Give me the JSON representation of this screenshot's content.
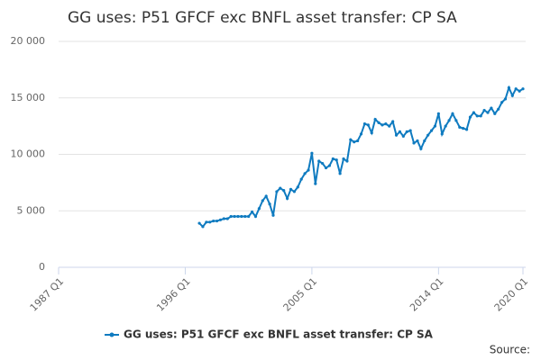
{
  "chart_data": {
    "type": "line",
    "title": "GG uses: P51 GFCF exc BNFL asset transfer: CP SA",
    "source": "Source:",
    "x": [
      "1997 Q1",
      "1997 Q2",
      "1997 Q3",
      "1997 Q4",
      "1998 Q1",
      "1998 Q2",
      "1998 Q3",
      "1998 Q4",
      "1999 Q1",
      "1999 Q2",
      "1999 Q3",
      "1999 Q4",
      "2000 Q1",
      "2000 Q2",
      "2000 Q3",
      "2000 Q4",
      "2001 Q1",
      "2001 Q2",
      "2001 Q3",
      "2001 Q4",
      "2002 Q1",
      "2002 Q2",
      "2002 Q3",
      "2002 Q4",
      "2003 Q1",
      "2003 Q2",
      "2003 Q3",
      "2003 Q4",
      "2004 Q1",
      "2004 Q2",
      "2004 Q3",
      "2004 Q4",
      "2005 Q1",
      "2005 Q2",
      "2005 Q3",
      "2005 Q4",
      "2006 Q1",
      "2006 Q2",
      "2006 Q3",
      "2006 Q4",
      "2007 Q1",
      "2007 Q2",
      "2007 Q3",
      "2007 Q4",
      "2008 Q1",
      "2008 Q2",
      "2008 Q3",
      "2008 Q4",
      "2009 Q1",
      "2009 Q2",
      "2009 Q3",
      "2009 Q4",
      "2010 Q1",
      "2010 Q2",
      "2010 Q3",
      "2010 Q4",
      "2011 Q1",
      "2011 Q2",
      "2011 Q3",
      "2011 Q4",
      "2012 Q1",
      "2012 Q2",
      "2012 Q3",
      "2012 Q4",
      "2013 Q1",
      "2013 Q2",
      "2013 Q3",
      "2013 Q4",
      "2014 Q1",
      "2014 Q2",
      "2014 Q3",
      "2014 Q4",
      "2015 Q1",
      "2015 Q2",
      "2015 Q3",
      "2015 Q4",
      "2016 Q1",
      "2016 Q2",
      "2016 Q3",
      "2016 Q4",
      "2017 Q1",
      "2017 Q2",
      "2017 Q3",
      "2017 Q4",
      "2018 Q1",
      "2018 Q2",
      "2018 Q3",
      "2018 Q4",
      "2019 Q1",
      "2019 Q2",
      "2019 Q3",
      "2019 Q4",
      "2020 Q1"
    ],
    "series": [
      {
        "name": "GG uses: P51 GFCF exc BNFL asset transfer: CP SA",
        "color": "#0f7bc0",
        "values": [
          3900,
          3600,
          4000,
          4000,
          4100,
          4100,
          4200,
          4300,
          4300,
          4500,
          4500,
          4500,
          4500,
          4500,
          4500,
          4900,
          4500,
          5200,
          5900,
          6300,
          5600,
          4600,
          6700,
          7000,
          6800,
          6100,
          6900,
          6700,
          7100,
          7800,
          8300,
          8600,
          10100,
          7400,
          9400,
          9200,
          8800,
          9000,
          9600,
          9500,
          8300,
          9600,
          9400,
          11300,
          11100,
          11200,
          11800,
          12700,
          12600,
          11900,
          13100,
          12800,
          12600,
          12700,
          12500,
          12900,
          11700,
          12000,
          11600,
          12000,
          12100,
          11000,
          11200,
          10500,
          11200,
          11700,
          12100,
          12500,
          13600,
          11800,
          12500,
          13000,
          13600,
          13000,
          12400,
          12300,
          12200,
          13300,
          13700,
          13400,
          13400,
          13900,
          13700,
          14100,
          13600,
          14000,
          14600,
          14900,
          15900,
          15200,
          15800,
          15600,
          15800
        ]
      }
    ],
    "xlim": [
      "1987 Q1",
      "2020 Q1"
    ],
    "xticks": [
      "1987 Q1",
      "1996 Q1",
      "2005 Q1",
      "2014 Q1",
      "2020 Q1"
    ],
    "ylim": [
      0,
      20000
    ],
    "yticks": [
      0,
      {
        "value": 5000,
        "label": "5 000"
      },
      {
        "value": 10000,
        "label": "10 000"
      },
      {
        "value": 15000,
        "label": "15 000"
      },
      {
        "value": 20000,
        "label": "20 000"
      }
    ],
    "grid": true
  }
}
